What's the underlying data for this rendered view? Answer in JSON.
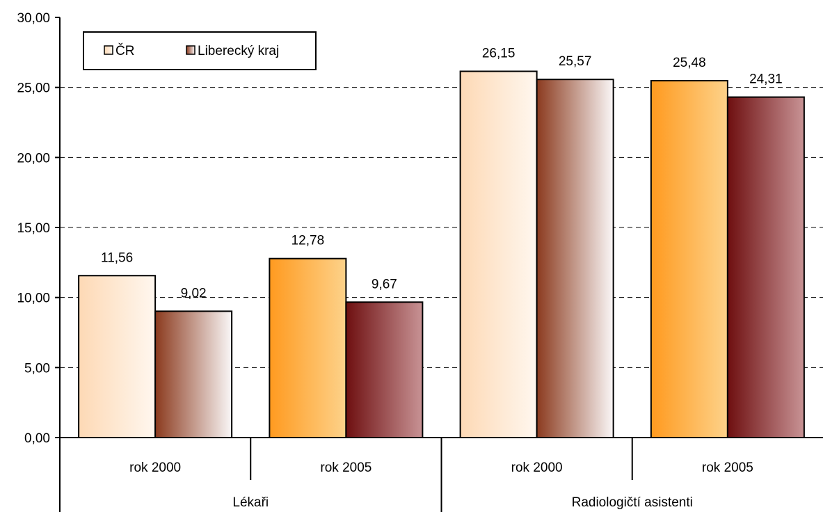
{
  "chart_data": {
    "type": "bar",
    "ylim": [
      0,
      30
    ],
    "y_ticks": [
      "0,00",
      "5,00",
      "10,00",
      "15,00",
      "20,00",
      "25,00",
      "30,00"
    ],
    "grid": "horizontal dashed",
    "legend_position": "top-left",
    "groups": [
      {
        "label": "Lékaři",
        "categories": [
          "rok  2000",
          "rok 2005"
        ]
      },
      {
        "label": "Radiologičtí asistenti",
        "categories": [
          "rok 2000",
          "rok 2005"
        ]
      }
    ],
    "series": [
      {
        "name": "ČR",
        "values": [
          11.56,
          12.78,
          26.15,
          25.48
        ],
        "labels": [
          "11,56",
          "12,78",
          "26,15",
          "25,48"
        ]
      },
      {
        "name": "Liberecký kraj",
        "values": [
          9.02,
          9.67,
          25.57,
          24.31
        ],
        "labels": [
          "9,02",
          "9,67",
          "25,57",
          "24,31"
        ]
      }
    ],
    "bar_styles": [
      "light",
      "dark",
      "light",
      "dark"
    ],
    "colors": {
      "cr_light_start": "#FDD9B5",
      "cr_light_end": "#FFF7EF",
      "cr_dark_start": "#FF9A1F",
      "cr_dark_end": "#FDD28A",
      "lk_light_start": "#8B3A1E",
      "lk_light_end": "#FAF7F7",
      "lk_dark_start": "#6E0F10",
      "lk_dark_end": "#C89395"
    }
  }
}
